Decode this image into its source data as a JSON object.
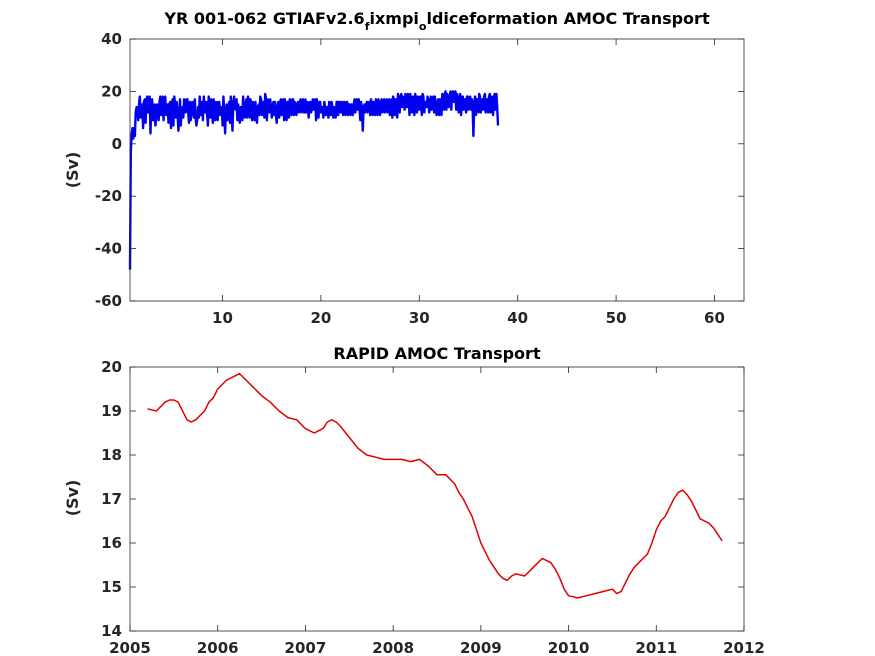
{
  "chart_data": [
    {
      "type": "line",
      "title_parts": [
        "YR 001-062 GTIAFv2.6",
        "f",
        "ixmpi",
        "o",
        "ldiceformation AMOC Transport"
      ],
      "xlabel": "",
      "ylabel": "(Sv)",
      "xlim": [
        0.6,
        63
      ],
      "ylim": [
        -60,
        40
      ],
      "xticks": [
        10,
        20,
        30,
        40,
        50,
        60
      ],
      "yticks": [
        -60,
        -40,
        -20,
        0,
        20,
        40
      ],
      "line_color": "#0000ee",
      "grid": false,
      "series": [
        {
          "x_start": 0.6,
          "x_step": 0.0833,
          "values": [
            -48,
            -3,
            3,
            6,
            2,
            6,
            3,
            12,
            14,
            13,
            9,
            15,
            18,
            10,
            11,
            15,
            6,
            16,
            17,
            8,
            16,
            18,
            12,
            12,
            18,
            4,
            15,
            17,
            9,
            9,
            15,
            7,
            10,
            15,
            12,
            9,
            16,
            18,
            11,
            11,
            18,
            9,
            17,
            18,
            11,
            12,
            15,
            8,
            15,
            16,
            6,
            13,
            17,
            7,
            18,
            15,
            10,
            16,
            12,
            5,
            10,
            17,
            7,
            13,
            14,
            10,
            17,
            16,
            12,
            17,
            17,
            12,
            8,
            16,
            9,
            12,
            16,
            14,
            10,
            17,
            10,
            7,
            9,
            14,
            10,
            18,
            11,
            13,
            16,
            9,
            18,
            14,
            12,
            16,
            12,
            7,
            18,
            14,
            10,
            17,
            13,
            8,
            17,
            14,
            9,
            16,
            14,
            9,
            16,
            16,
            11,
            13,
            14,
            7,
            18,
            12,
            4,
            13,
            15,
            9,
            14,
            16,
            8,
            18,
            11,
            5,
            16,
            18,
            14,
            13,
            17,
            9,
            15,
            11,
            8,
            14,
            12,
            9,
            18,
            15,
            10,
            15,
            17,
            10,
            18,
            16,
            10,
            17,
            15,
            9,
            16,
            14,
            9,
            16,
            12,
            8,
            14,
            15,
            11,
            18,
            17,
            11,
            14,
            16,
            10,
            19,
            17,
            9,
            17,
            16,
            12,
            17,
            14,
            10,
            14,
            16,
            11,
            16,
            11,
            8,
            14,
            16,
            10,
            15,
            17,
            11,
            16,
            17,
            9,
            17,
            13,
            9,
            16,
            16,
            10,
            17,
            16,
            11,
            17,
            17,
            11,
            16,
            15,
            11,
            15,
            16,
            12,
            15,
            17,
            12,
            16,
            17,
            12,
            12,
            17,
            12,
            16,
            14,
            10,
            16,
            16,
            12,
            14,
            17,
            13,
            15,
            17,
            9,
            17,
            13,
            10,
            16,
            16,
            12,
            14,
            14,
            10,
            16,
            14,
            11,
            14,
            14,
            10,
            16,
            15,
            11,
            16,
            14,
            10,
            14,
            13,
            10,
            16,
            16,
            11,
            16,
            16,
            12,
            16,
            15,
            11,
            16,
            16,
            11,
            15,
            16,
            11,
            15,
            15,
            11,
            15,
            15,
            11,
            15,
            17,
            12,
            16,
            17,
            13,
            17,
            14,
            9,
            16,
            13,
            5,
            14,
            15,
            12,
            15,
            16,
            12,
            15,
            16,
            11,
            17,
            15,
            11,
            16,
            14,
            11,
            17,
            15,
            11,
            17,
            14,
            11,
            16,
            17,
            12,
            16,
            17,
            12,
            16,
            17,
            12,
            16,
            17,
            11,
            16,
            17,
            10,
            18,
            17,
            11,
            17,
            17,
            10,
            19,
            17,
            12,
            18,
            19,
            14,
            18,
            17,
            13,
            19,
            18,
            14,
            19,
            17,
            11,
            19,
            16,
            12,
            18,
            15,
            11,
            19,
            17,
            12,
            18,
            17,
            13,
            18,
            18,
            11,
            19,
            18,
            12,
            16,
            16,
            14,
            18,
            17,
            12,
            14,
            18,
            13,
            17,
            18,
            12,
            18,
            15,
            11,
            16,
            17,
            11,
            17,
            17,
            11,
            19,
            16,
            13,
            19,
            20,
            13,
            19,
            18,
            14,
            18,
            20,
            13,
            19,
            20,
            16,
            19,
            20,
            13,
            19,
            18,
            12,
            17,
            19,
            11,
            16,
            18,
            13,
            17,
            17,
            12,
            18,
            18,
            13,
            17,
            18,
            13,
            17,
            14,
            3,
            16,
            18,
            11,
            17,
            17,
            12,
            19,
            18,
            12,
            16,
            17,
            13,
            18,
            19,
            12,
            17,
            17,
            12,
            18,
            19,
            12,
            18,
            17,
            11,
            18,
            19,
            13,
            19,
            14,
            7
          ]
        }
      ]
    },
    {
      "type": "line",
      "title": "RAPID AMOC Transport",
      "xlabel": "",
      "ylabel": "(Sv)",
      "xlim": [
        2005,
        2012
      ],
      "ylim": [
        14,
        20
      ],
      "xticks": [
        2005,
        2006,
        2007,
        2008,
        2009,
        2010,
        2011,
        2012
      ],
      "yticks": [
        14,
        15,
        16,
        17,
        18,
        19,
        20
      ],
      "line_color": "#e00000",
      "grid": false,
      "series": [
        {
          "x": [
            2005.2,
            2005.3,
            2005.35,
            2005.4,
            2005.45,
            2005.5,
            2005.55,
            2005.6,
            2005.65,
            2005.7,
            2005.75,
            2005.8,
            2005.85,
            2005.9,
            2005.95,
            2006.0,
            2006.05,
            2006.1,
            2006.15,
            2006.2,
            2006.25,
            2006.3,
            2006.35,
            2006.4,
            2006.45,
            2006.5,
            2006.6,
            2006.7,
            2006.8,
            2006.9,
            2007.0,
            2007.1,
            2007.15,
            2007.2,
            2007.25,
            2007.3,
            2007.35,
            2007.4,
            2007.5,
            2007.6,
            2007.7,
            2007.8,
            2007.9,
            2008.0,
            2008.1,
            2008.2,
            2008.3,
            2008.4,
            2008.5,
            2008.6,
            2008.7,
            2008.75,
            2008.8,
            2008.85,
            2008.9,
            2008.95,
            2009.0,
            2009.05,
            2009.1,
            2009.15,
            2009.2,
            2009.25,
            2009.3,
            2009.35,
            2009.4,
            2009.5,
            2009.6,
            2009.65,
            2009.7,
            2009.75,
            2009.8,
            2009.85,
            2009.9,
            2009.95,
            2010.0,
            2010.05,
            2010.1,
            2010.2,
            2010.3,
            2010.4,
            2010.5,
            2010.55,
            2010.6,
            2010.65,
            2010.7,
            2010.75,
            2010.8,
            2010.85,
            2010.9,
            2010.95,
            2011.0,
            2011.05,
            2011.1,
            2011.15,
            2011.2,
            2011.25,
            2011.3,
            2011.35,
            2011.4,
            2011.45,
            2011.5,
            2011.55,
            2011.6,
            2011.65,
            2011.7,
            2011.75
          ],
          "values": [
            19.05,
            19.0,
            19.1,
            19.2,
            19.25,
            19.25,
            19.2,
            19.0,
            18.8,
            18.75,
            18.8,
            18.9,
            19.0,
            19.2,
            19.3,
            19.5,
            19.6,
            19.7,
            19.75,
            19.8,
            19.85,
            19.75,
            19.65,
            19.55,
            19.45,
            19.35,
            19.2,
            19.0,
            18.85,
            18.8,
            18.6,
            18.5,
            18.55,
            18.6,
            18.75,
            18.8,
            18.75,
            18.65,
            18.4,
            18.15,
            18.0,
            17.95,
            17.9,
            17.9,
            17.9,
            17.85,
            17.9,
            17.75,
            17.55,
            17.55,
            17.35,
            17.15,
            17.0,
            16.8,
            16.6,
            16.3,
            16.0,
            15.8,
            15.6,
            15.45,
            15.3,
            15.2,
            15.15,
            15.25,
            15.3,
            15.25,
            15.45,
            15.55,
            15.65,
            15.6,
            15.55,
            15.4,
            15.2,
            14.95,
            14.8,
            14.78,
            14.75,
            14.8,
            14.85,
            14.9,
            14.95,
            14.85,
            14.9,
            15.1,
            15.3,
            15.45,
            15.55,
            15.65,
            15.75,
            16.0,
            16.3,
            16.5,
            16.6,
            16.8,
            17.0,
            17.15,
            17.2,
            17.1,
            16.95,
            16.75,
            16.55,
            16.5,
            16.45,
            16.35,
            16.2,
            16.05
          ]
        }
      ]
    }
  ]
}
